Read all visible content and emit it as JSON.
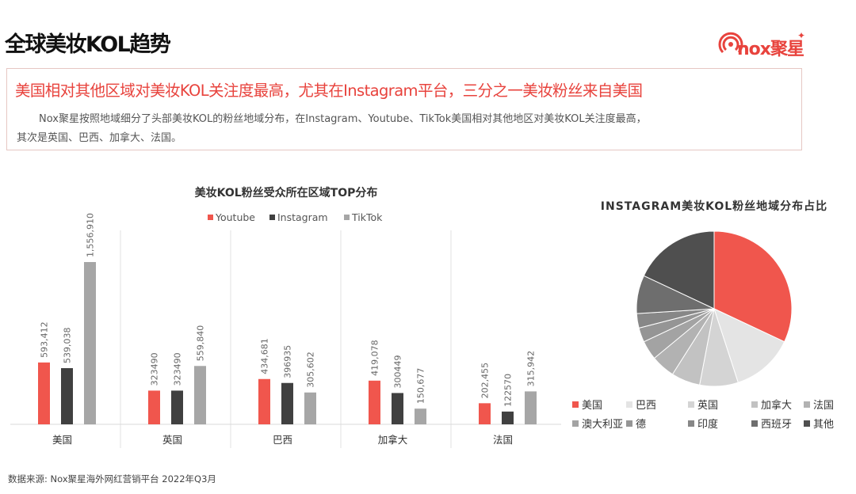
{
  "page": {
    "title": "全球美妆KOL趋势",
    "logo_text": "nox聚星",
    "headline": "美国相对其他区域对美妆KOL关注度最高，尤其在Instagram平台，三分之一美妆粉丝来自美国",
    "body_line1": "Nox聚星按照地域细分了头部美妆KOL的粉丝地域分布，在Instagram、Youtube、TikTok美国相对其他地区对美妆KOL关注度最高，",
    "body_line2": "其次是英国、巴西、加拿大、法国。",
    "source": "数据来源: Nox聚星海外网红营销平台 2022年Q3月"
  },
  "colors": {
    "youtube": "#f0564d",
    "instagram": "#404040",
    "tiktok": "#a6a6a6",
    "accent_red": "#e8433d"
  },
  "chart_data": [
    {
      "type": "bar",
      "title": "美妆KOL粉丝受众所在区域TOP分布",
      "categories": [
        "美国",
        "英国",
        "巴西",
        "加拿大",
        "法国"
      ],
      "series": [
        {
          "name": "Youtube",
          "values": [
            593412,
            323490,
            434681,
            419078,
            202455
          ],
          "labels": [
            "593,412",
            "323490",
            "434,681",
            "419,078",
            "202,455"
          ]
        },
        {
          "name": "Instagram",
          "values": [
            539038,
            323490,
            396935,
            300449,
            122570
          ],
          "labels": [
            "539,038",
            "323490",
            "396935",
            "300449",
            "122570"
          ]
        },
        {
          "name": "TikTok",
          "values": [
            1556910,
            559840,
            305602,
            150677,
            315942
          ],
          "labels": [
            "1,556,910",
            "559,840",
            "305,602",
            "150,677",
            "315,942"
          ]
        }
      ],
      "legend_position": "top",
      "y_axis_visible": false
    },
    {
      "type": "pie",
      "title": "INSTAGRAM美妆KOL粉丝地域分布占比",
      "labels": [
        "美国",
        "巴西",
        "英国",
        "加拿大",
        "法国",
        "澳大利亚",
        "德",
        "印度",
        "西班牙",
        "其他"
      ],
      "values": [
        32,
        13,
        8,
        6,
        5,
        4,
        3,
        3,
        8,
        18
      ],
      "colors": [
        "#f0564d",
        "#e4e4e4",
        "#d4d4d4",
        "#c2c2c2",
        "#b2b2b2",
        "#a3a3a3",
        "#959595",
        "#878787",
        "#6e6e6e",
        "#4f4f4f"
      ],
      "legend_position": "bottom"
    }
  ]
}
